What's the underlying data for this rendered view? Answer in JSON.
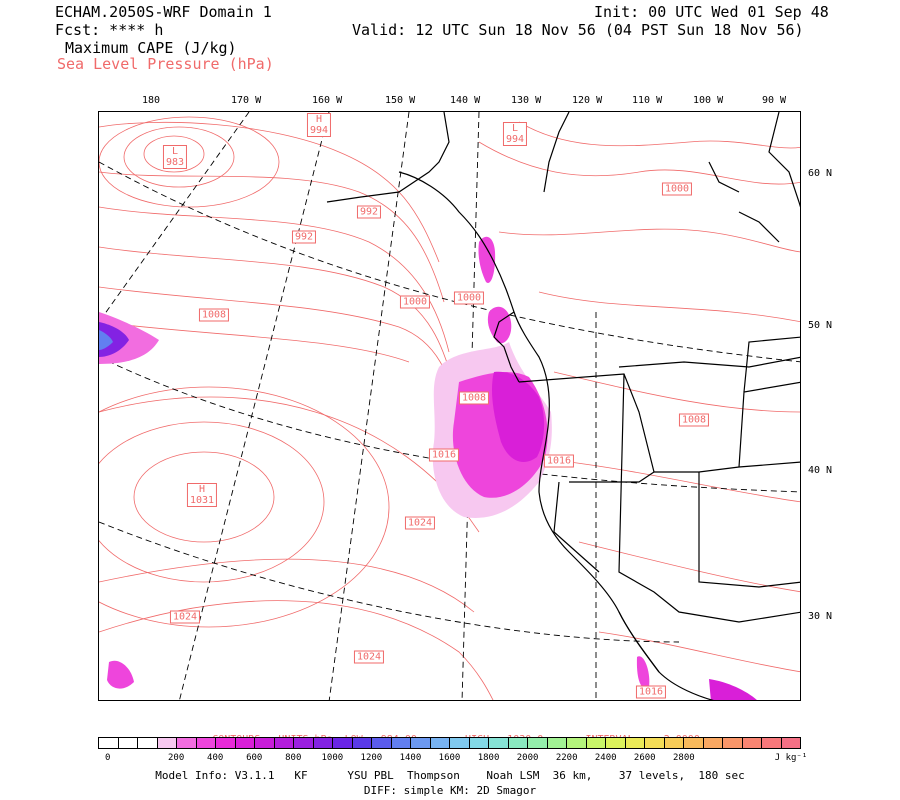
{
  "header": {
    "model": "ECHAM.2050S-WRF Domain 1",
    "fcst": "Fcst: **** h",
    "field_main": "Maximum CAPE (J/kg)",
    "field_overlay": "Sea Level Pressure (hPa)",
    "init": "Init: 00 UTC Wed 01 Sep 48",
    "valid": "Valid: 12 UTC Sun 18 Nov 56 (04 PST Sun 18 Nov 56)"
  },
  "lon_ticks": [
    "180",
    "170 W",
    "160 W",
    "150 W",
    "140 W",
    "130 W",
    "120 W",
    "110 W",
    "100 W",
    "90 W"
  ],
  "lat_ticks": [
    "60 N",
    "50 N",
    "40 N",
    "30 N"
  ],
  "pressure_labels": [
    {
      "text": "H\n994",
      "kind": "high"
    },
    {
      "text": "L\n994",
      "kind": "low"
    },
    {
      "text": "L\n983",
      "kind": "low"
    },
    {
      "text": "992",
      "kind": "value"
    },
    {
      "text": "992",
      "kind": "value"
    },
    {
      "text": "1000",
      "kind": "value"
    },
    {
      "text": "1000",
      "kind": "value"
    },
    {
      "text": "1000",
      "kind": "value"
    },
    {
      "text": "1008",
      "kind": "value"
    },
    {
      "text": "1008",
      "kind": "value"
    },
    {
      "text": "1008",
      "kind": "value"
    },
    {
      "text": "1016",
      "kind": "value"
    },
    {
      "text": "1016",
      "kind": "value"
    },
    {
      "text": "H\n1031",
      "kind": "high"
    },
    {
      "text": "1024",
      "kind": "value"
    },
    {
      "text": "1024",
      "kind": "value"
    },
    {
      "text": "1024",
      "kind": "value"
    },
    {
      "text": "1016",
      "kind": "value"
    }
  ],
  "contours_info": "CONTOURS:  UNITS=hPa  LOW=  984.00        HIGH=  1030.0       INTERVAL=    2.0000",
  "colorbar": {
    "colors": [
      "#ffffff",
      "#ffffff",
      "#ffffff",
      "#f7c8f0",
      "#f26de0",
      "#ee45dc",
      "#e82ad8",
      "#d91fd8",
      "#c81dd9",
      "#b31ddc",
      "#9b1fe0",
      "#8322e3",
      "#6a25e6",
      "#5a3ae8",
      "#5b5ced",
      "#627ff0",
      "#6c99f1",
      "#78b3f2",
      "#80c9ef",
      "#83d9e6",
      "#86e3d5",
      "#8ae9c0",
      "#94eeab",
      "#a2f294",
      "#b4f47c",
      "#c8f569",
      "#dcf25c",
      "#ebea58",
      "#f4dd57",
      "#f7cc58",
      "#f8ba5c",
      "#f9a862",
      "#f99669",
      "#f98572",
      "#f8787b",
      "#f57085"
    ],
    "tick_labels": [
      "0",
      "200",
      "400",
      "600",
      "800",
      "1000",
      "1200",
      "1400",
      "1600",
      "1800",
      "2000",
      "2200",
      "2400",
      "2600",
      "2800",
      "J kg⁻¹"
    ]
  },
  "footer": {
    "model_info": "Model Info: V3.1.1   KF      YSU PBL  Thompson    Noah LSM  36 km,    37 levels,  180 sec",
    "diff": "DIFF: simple KM: 2D Smagor"
  }
}
